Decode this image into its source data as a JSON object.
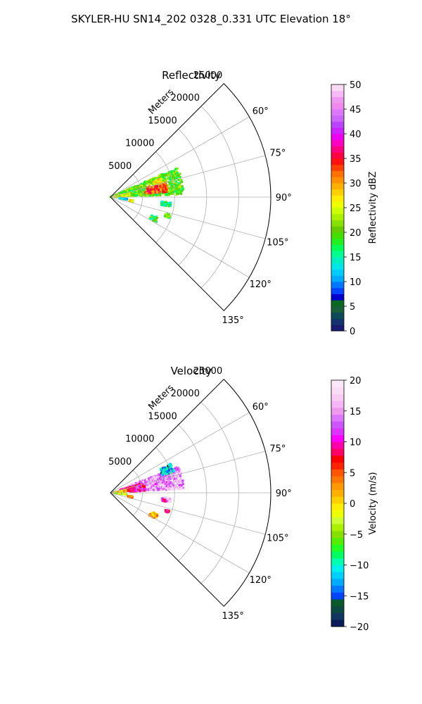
{
  "figure": {
    "title": "SKYLER-HU  SN14_202  0328_0.331 UTC Elevation 18°"
  },
  "chart_data": [
    {
      "type": "heatmap",
      "projection": "polar-sector",
      "title": "Reflectivity",
      "range_label": "Meters",
      "range_ticks": [
        5000,
        10000,
        15000,
        20000,
        25000
      ],
      "range_tick_labels": [
        "5000",
        "10000",
        "15000",
        "20000",
        "25000"
      ],
      "range_lim": [
        0,
        25000
      ],
      "azimuth_lim_deg": [
        45,
        135
      ],
      "azimuth_ticks_deg": [
        60,
        75,
        90,
        105,
        120,
        135
      ],
      "azimuth_tick_labels": [
        "60°",
        "75°",
        "90°",
        "105°",
        "120°",
        "135°"
      ],
      "grid": true,
      "colorbar": {
        "label": "Reflectivity dBZ",
        "min": 0,
        "max": 50,
        "ticks": [
          0,
          5,
          10,
          15,
          20,
          25,
          30,
          35,
          40,
          45,
          50
        ],
        "tick_labels": [
          "0",
          "5",
          "10",
          "15",
          "20",
          "25",
          "30",
          "35",
          "40",
          "45",
          "50"
        ],
        "colormap": "NWSRef"
      },
      "blobs": [
        {
          "az_deg": 77,
          "az_width_deg": 22,
          "r_min": 0,
          "r_max": 11500,
          "value": 20
        },
        {
          "az_deg": 80,
          "az_width_deg": 10,
          "r_min": 5500,
          "r_max": 9000,
          "value": 33
        },
        {
          "az_deg": 72,
          "az_width_deg": 5,
          "r_min": 7000,
          "r_max": 8500,
          "value": 26
        },
        {
          "az_deg": 82,
          "az_width_deg": 8,
          "r_min": 400,
          "r_max": 3000,
          "value": 24
        },
        {
          "az_deg": 97,
          "az_width_deg": 3,
          "r_min": 1400,
          "r_max": 2600,
          "value": 12
        },
        {
          "az_deg": 100,
          "az_width_deg": 4,
          "r_min": 3000,
          "r_max": 3600,
          "value": 27
        },
        {
          "az_deg": 97,
          "az_width_deg": 4,
          "r_min": 8000,
          "r_max": 9500,
          "value": 16
        },
        {
          "az_deg": 116,
          "az_width_deg": 6,
          "r_min": 7000,
          "r_max": 8200,
          "value": 18
        },
        {
          "az_deg": 108,
          "az_width_deg": 3,
          "r_min": 9000,
          "r_max": 9800,
          "value": 20
        }
      ]
    },
    {
      "type": "heatmap",
      "projection": "polar-sector",
      "title": "Velocity",
      "range_label": "Meters",
      "range_ticks": [
        5000,
        10000,
        15000,
        20000,
        25000
      ],
      "range_tick_labels": [
        "5000",
        "10000",
        "15000",
        "20000",
        "25000"
      ],
      "range_lim": [
        0,
        25000
      ],
      "azimuth_lim_deg": [
        45,
        135
      ],
      "azimuth_ticks_deg": [
        60,
        75,
        90,
        105,
        120,
        135
      ],
      "azimuth_tick_labels": [
        "60°",
        "75°",
        "90°",
        "105°",
        "120°",
        "135°"
      ],
      "grid": true,
      "colorbar": {
        "label": "Velocity (m/s)",
        "min": -20,
        "max": 20,
        "ticks": [
          -20,
          -15,
          -10,
          -5,
          0,
          5,
          10,
          15,
          20
        ],
        "tick_labels": [
          "−20",
          "−15",
          "−10",
          "−5",
          "0",
          "5",
          "10",
          "15",
          "20"
        ],
        "colormap": "NWSVel"
      },
      "blobs": [
        {
          "az_deg": 78,
          "az_width_deg": 18,
          "r_min": 3000,
          "r_max": 11500,
          "value": 15
        },
        {
          "az_deg": 68,
          "az_width_deg": 8,
          "r_min": 8500,
          "r_max": 10500,
          "value": -12
        },
        {
          "az_deg": 80,
          "az_width_deg": 14,
          "r_min": 1500,
          "r_max": 5500,
          "value": 10
        },
        {
          "az_deg": 83,
          "az_width_deg": 8,
          "r_min": 400,
          "r_max": 2500,
          "value": 1
        },
        {
          "az_deg": 95,
          "az_width_deg": 4,
          "r_min": 300,
          "r_max": 2500,
          "value": -4
        },
        {
          "az_deg": 101,
          "az_width_deg": 4,
          "r_min": 2800,
          "r_max": 3500,
          "value": 4
        },
        {
          "az_deg": 97,
          "az_width_deg": 4,
          "r_min": 8000,
          "r_max": 9500,
          "value": 16
        },
        {
          "az_deg": 98,
          "az_width_deg": 2,
          "r_min": 8200,
          "r_max": 8800,
          "value": 10
        },
        {
          "az_deg": 117,
          "az_width_deg": 6,
          "r_min": 7000,
          "r_max": 8200,
          "value": 2
        },
        {
          "az_deg": 108,
          "az_width_deg": 2,
          "r_min": 9000,
          "r_max": 9600,
          "value": 8
        }
      ]
    }
  ]
}
